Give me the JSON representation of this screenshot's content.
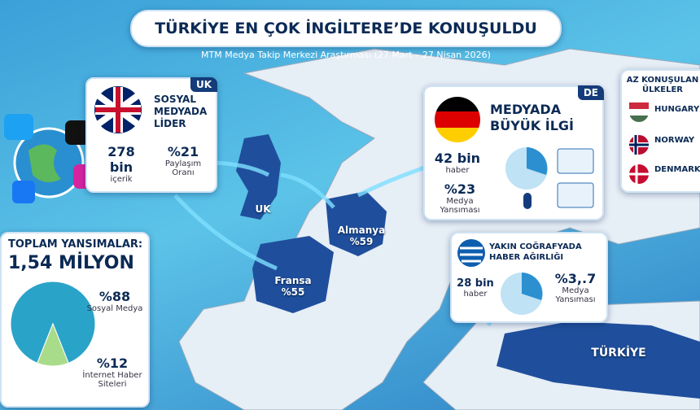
{
  "header": {
    "title": "TÜRKİYE EN ÇOK İNGİLTERE’DE KONUŞULDU",
    "subtitle": "MTM Medya Takip Merkezi Araştırması (27 Mart – 27 Nisan 2026)"
  },
  "uk_panel": {
    "tag": "UK",
    "title_lines": [
      "SOSYAL",
      "MEDYADA",
      "LİDER"
    ],
    "stats": [
      {
        "value": "278 bin",
        "label": "içerik"
      },
      {
        "value": "%21",
        "label": "Paylaşım Oranı"
      }
    ]
  },
  "de_panel": {
    "tag": "DE",
    "title_lines": [
      "MEDYADA",
      "BÜYÜK İLGİ"
    ],
    "stats": [
      {
        "value": "42 bin",
        "label": "haber"
      },
      {
        "value": "%23",
        "label": "Medya Yansıması"
      }
    ]
  },
  "gr_panel": {
    "title_lines": [
      "YAKIN COĞRAFYADA",
      "HABER AĞIRLIĞI"
    ],
    "stats": [
      {
        "value": "28 bin",
        "label": "haber"
      },
      {
        "value": "%3,.7",
        "label": "Medya Yansıması"
      }
    ]
  },
  "low_panel": {
    "title_lines": [
      "AZ KONUŞULAN",
      "ÜLKELER"
    ],
    "countries": [
      "HUNGARY",
      "NORWAY",
      "DENMARK"
    ]
  },
  "map_labels": {
    "uk": "UK",
    "germany": {
      "name": "Almanya",
      "value": "%59"
    },
    "france": {
      "name": "Fransa",
      "value": "%55"
    },
    "turkey": "TÜRKİYE"
  },
  "total_panel": {
    "title": "TOPLAM YANSIMALAR:",
    "total": "1,54 MİLYON",
    "pie": {
      "values": [
        88,
        12
      ],
      "value_labels": [
        "%88",
        "%12"
      ],
      "labels": [
        "Sosyal Medya",
        "İnternet Haber Siteleri"
      ]
    }
  }
}
